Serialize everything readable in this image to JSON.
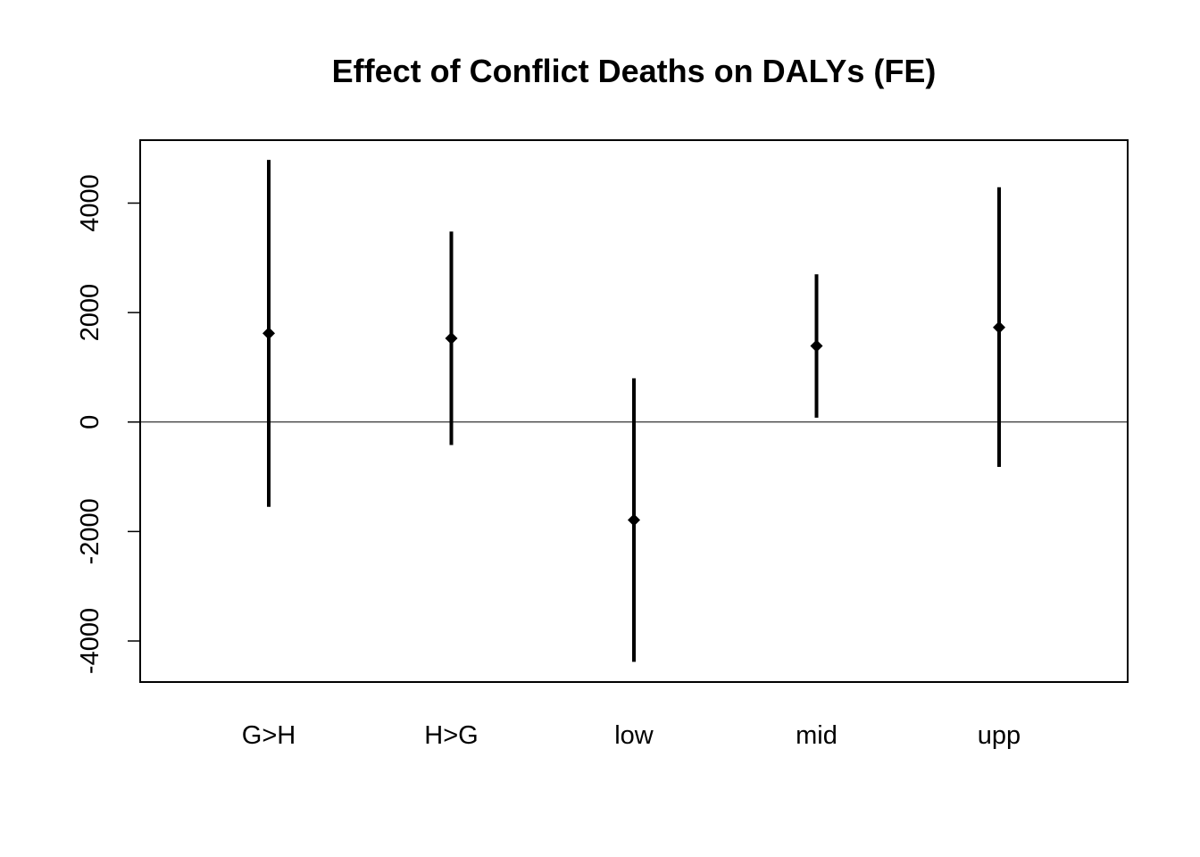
{
  "chart_data": {
    "type": "errorbar",
    "title": "Effect of Conflict Deaths on DALYs (FE)",
    "xlabel": "",
    "ylabel": "",
    "categories": [
      "G>H",
      "H>G",
      "low",
      "mid",
      "upp"
    ],
    "estimates": [
      1620,
      1530,
      -1790,
      1390,
      1730
    ],
    "lower": [
      -1550,
      -420,
      -4380,
      80,
      -820
    ],
    "upper": [
      4790,
      3480,
      800,
      2700,
      4290
    ],
    "yticks": [
      -4000,
      -2000,
      0,
      2000,
      4000
    ],
    "ylim": [
      -4750,
      5150
    ],
    "reference_line": 0,
    "grid": false,
    "colors": {
      "line": "#000000",
      "axis": "#000000",
      "background": "#ffffff"
    }
  }
}
